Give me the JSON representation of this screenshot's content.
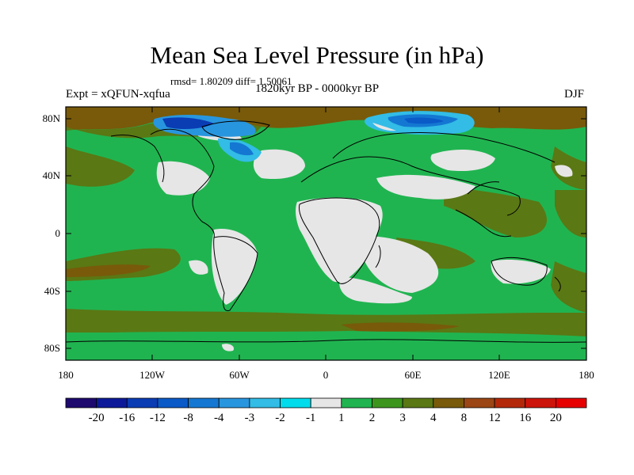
{
  "title": "Mean Sea Level Pressure (in hPa)",
  "stats": "rmsd= 1.80209 diff= 1.50061",
  "period": "1820kyr BP - 0000kyr BP",
  "experiment": "Expt = xQFUN-xqfua",
  "season": "DJF",
  "lat_labels": [
    "80N",
    "40N",
    "0",
    "40S",
    "80S"
  ],
  "lon_labels": [
    "180",
    "120W",
    "60W",
    "0",
    "60E",
    "120E",
    "180"
  ],
  "colorbar": {
    "labels": [
      "-20",
      "-16",
      "-12",
      "-8",
      "-4",
      "-3",
      "-2",
      "-1",
      "1",
      "2",
      "3",
      "4",
      "8",
      "12",
      "16",
      "20"
    ],
    "colors": [
      "#1e0a6e",
      "#0c1a9a",
      "#0a3cb4",
      "#0a5ac8",
      "#1478d2",
      "#2896de",
      "#32bce6",
      "#00dcec",
      "#e6e6e6",
      "#20b450",
      "#3c961e",
      "#5a7814",
      "#785a0a",
      "#9b4614",
      "#b4280a",
      "#cd140a",
      "#e60000"
    ]
  }
}
